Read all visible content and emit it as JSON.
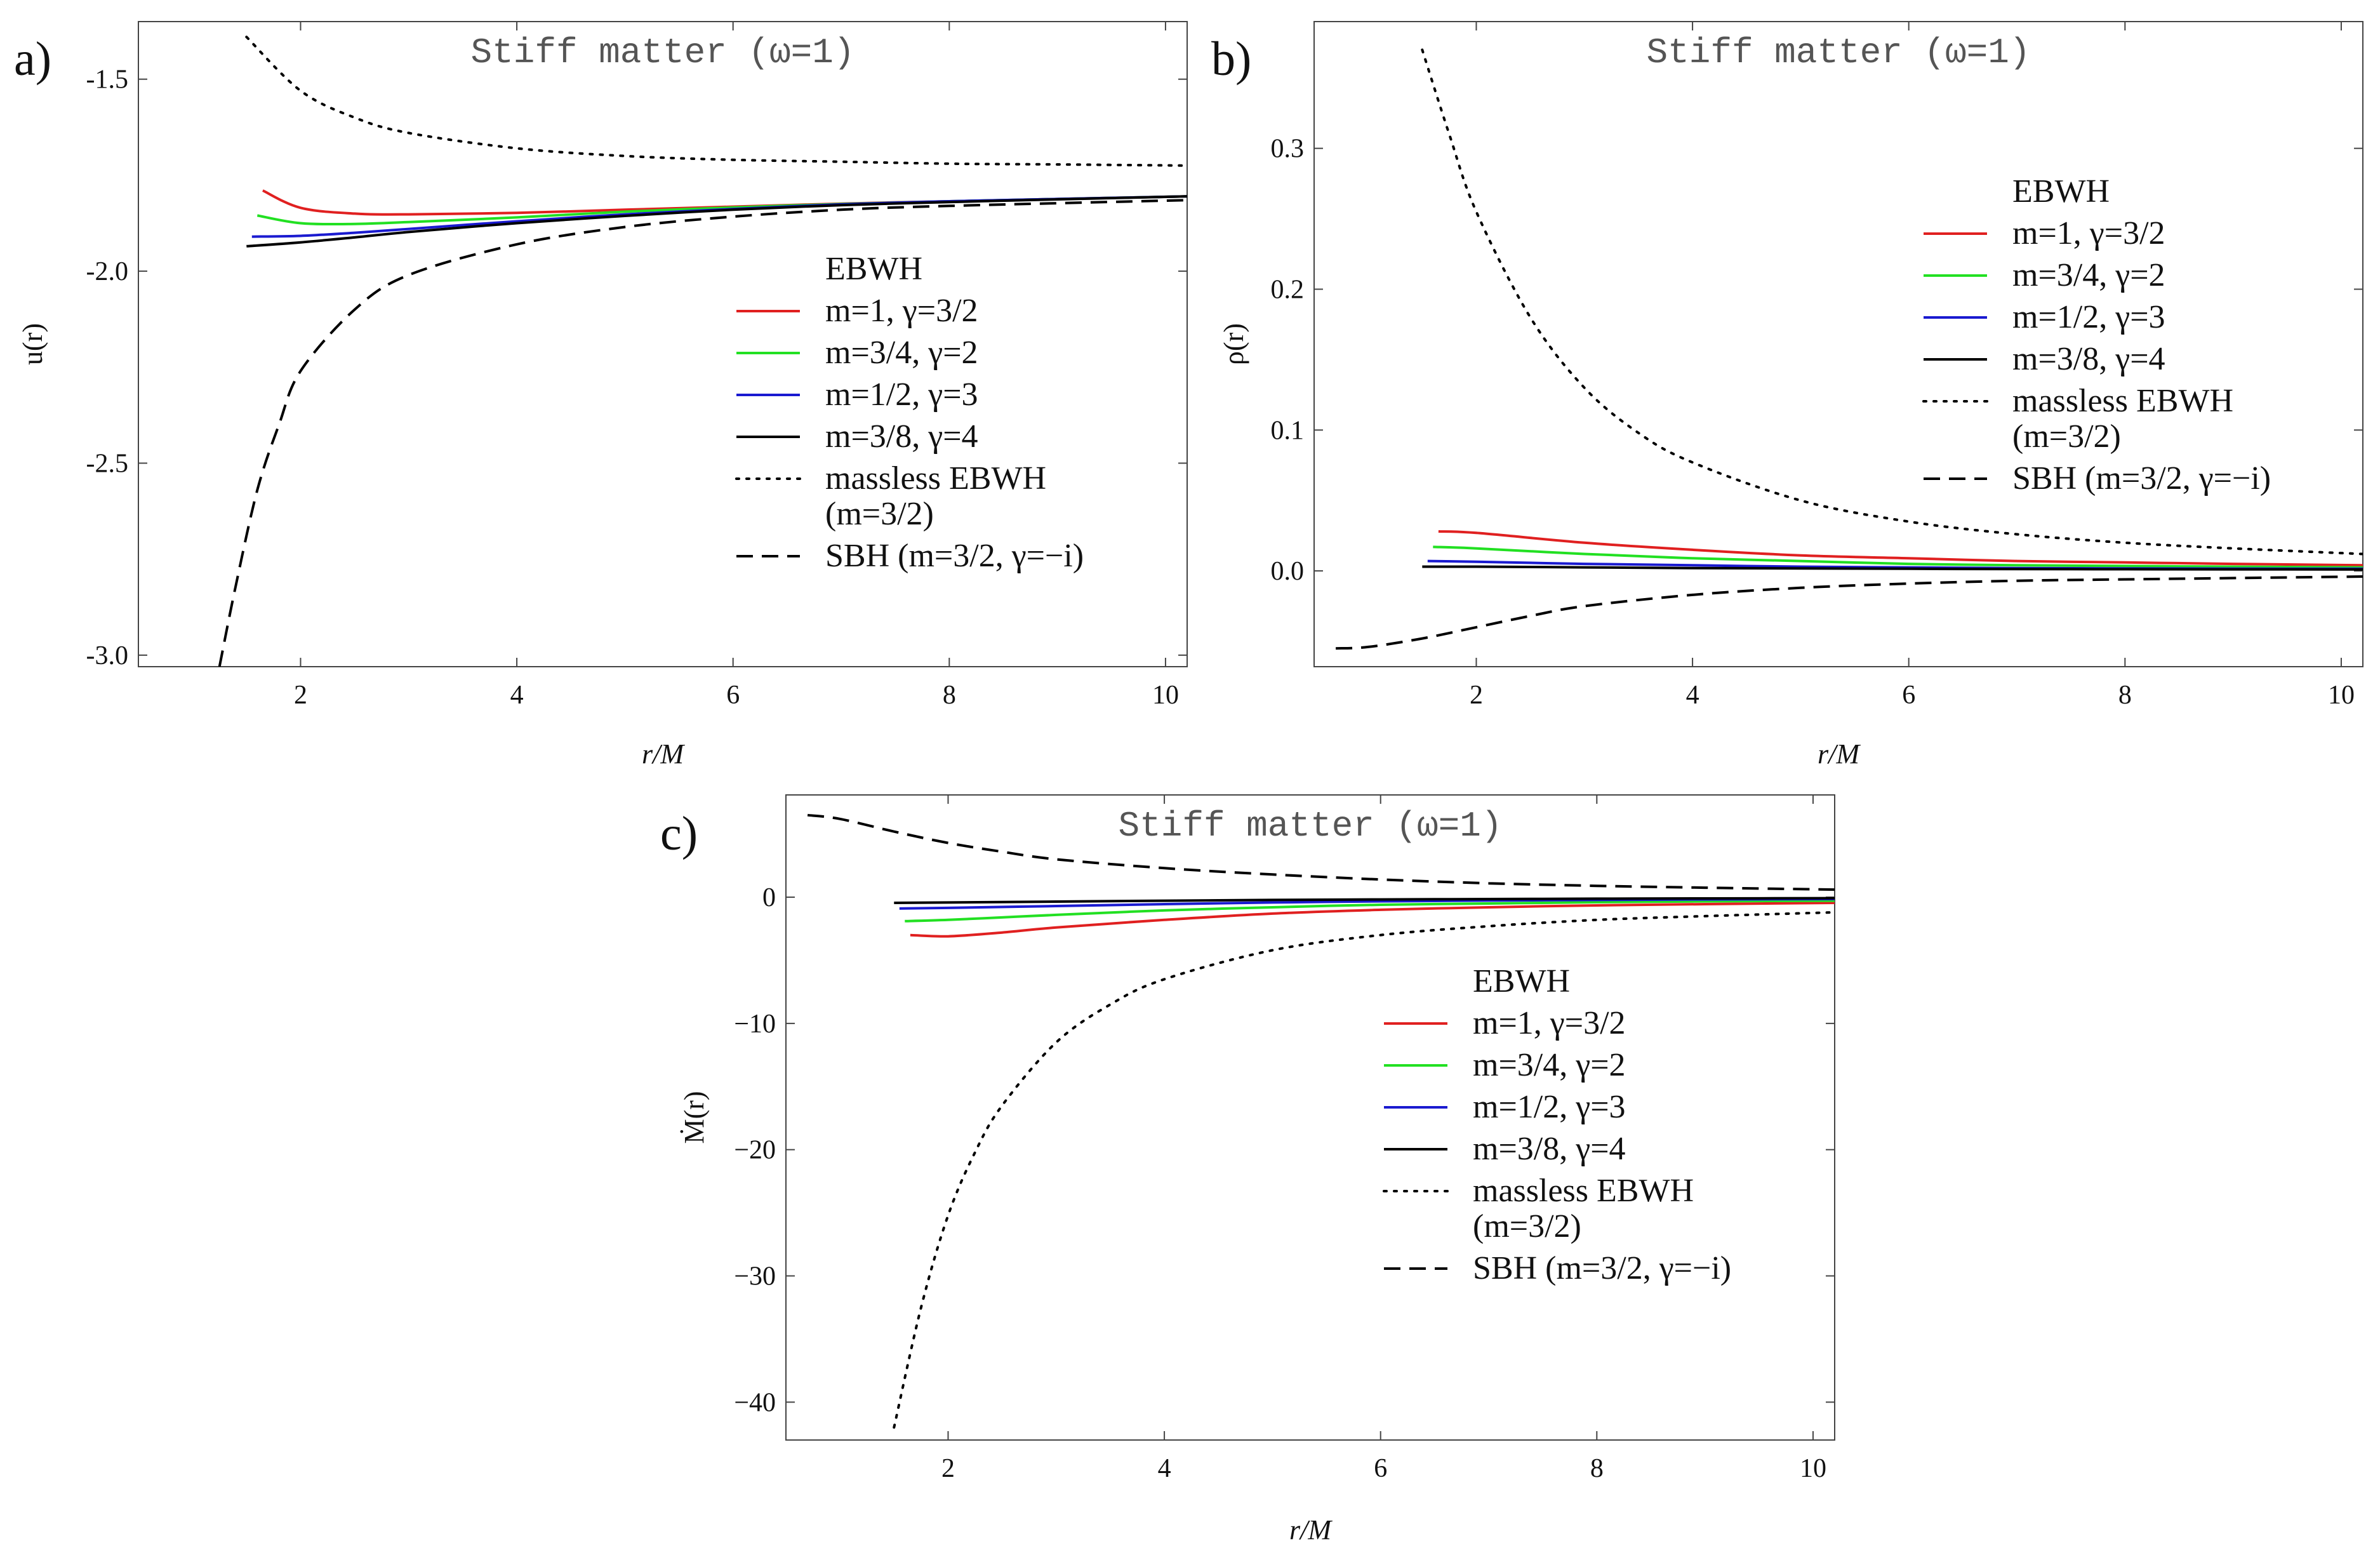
{
  "chart_data": [
    {
      "type": "line",
      "panel_label": "a)",
      "title": "Stiff matter (ω=1)",
      "xlabel": "r/M",
      "ylabel": "u(r)",
      "xlim": [
        0.5,
        10.2
      ],
      "ylim": [
        -3.03,
        -1.35
      ],
      "xticks": [
        "2",
        "4",
        "6",
        "8",
        "10"
      ],
      "xtick_values": [
        2,
        4,
        6,
        8,
        10
      ],
      "yticks": [
        "-1.5",
        "-2.0",
        "-2.5",
        "-3.0"
      ],
      "ytick_values": [
        -1.5,
        -2.0,
        -2.5,
        -3.0
      ],
      "legend": {
        "position": "center-right",
        "heading": "EBWH",
        "entries": [
          {
            "label": "m=1, γ=3/2",
            "color": "#e02020",
            "dash": "solid"
          },
          {
            "label": "m=3/4, γ=2",
            "color": "#22e022",
            "dash": "solid"
          },
          {
            "label": "m=1/2, γ=3",
            "color": "#1a1ad0",
            "dash": "solid"
          },
          {
            "label": "m=3/8, γ=4",
            "color": "#000000",
            "dash": "solid"
          },
          {
            "label": "massless EBWH",
            "label2": "(m=3/2)",
            "color": "#000000",
            "dash": "dotted"
          },
          {
            "label": "SBH (m=3/2, γ=−i)",
            "color": "#000000",
            "dash": "dashed"
          }
        ]
      },
      "series": [
        {
          "name": "m=1, γ=3/2",
          "color": "#e02020",
          "dash": "solid",
          "x": [
            1.65,
            2,
            2.5,
            3,
            4,
            5,
            6,
            7,
            8,
            9,
            10.2
          ],
          "y": [
            -1.79,
            -1.835,
            -1.85,
            -1.852,
            -1.848,
            -1.84,
            -1.832,
            -1.824,
            -1.818,
            -1.812,
            -1.805
          ]
        },
        {
          "name": "m=3/4, γ=2",
          "color": "#22e022",
          "dash": "solid",
          "x": [
            1.6,
            2,
            2.5,
            3,
            4,
            5,
            6,
            7,
            8,
            9,
            10.2
          ],
          "y": [
            -1.855,
            -1.875,
            -1.877,
            -1.872,
            -1.86,
            -1.845,
            -1.834,
            -1.825,
            -1.818,
            -1.812,
            -1.805
          ]
        },
        {
          "name": "m=1/2, γ=3",
          "color": "#1a1ad0",
          "dash": "solid",
          "x": [
            1.55,
            2,
            2.5,
            3,
            4,
            5,
            6,
            7,
            8,
            9,
            10.2
          ],
          "y": [
            -1.91,
            -1.908,
            -1.9,
            -1.89,
            -1.87,
            -1.852,
            -1.838,
            -1.826,
            -1.818,
            -1.812,
            -1.805
          ]
        },
        {
          "name": "m=3/8, γ=4",
          "color": "#000000",
          "dash": "solid",
          "x": [
            1.5,
            2,
            2.5,
            3,
            4,
            5,
            6,
            7,
            8,
            9,
            10.2
          ],
          "y": [
            -1.935,
            -1.925,
            -1.912,
            -1.898,
            -1.875,
            -1.856,
            -1.84,
            -1.828,
            -1.82,
            -1.813,
            -1.805
          ]
        },
        {
          "name": "massless EBWH (m=3/2)",
          "color": "#000000",
          "dash": "dotted",
          "x": [
            1.5,
            2,
            2.5,
            3,
            4,
            5,
            6,
            7,
            8,
            9,
            10.2
          ],
          "y": [
            -1.39,
            -1.53,
            -1.6,
            -1.64,
            -1.68,
            -1.7,
            -1.71,
            -1.715,
            -1.72,
            -1.722,
            -1.725
          ]
        },
        {
          "name": "SBH (m=3/2, γ=−i)",
          "color": "#000000",
          "dash": "dashed",
          "x": [
            1.25,
            1.4,
            1.6,
            1.8,
            2,
            2.5,
            3,
            4,
            5,
            6,
            7,
            8,
            10.2
          ],
          "y": [
            -3.03,
            -2.82,
            -2.57,
            -2.4,
            -2.26,
            -2.1,
            -2.01,
            -1.93,
            -1.885,
            -1.858,
            -1.84,
            -1.83,
            -1.815
          ]
        }
      ]
    },
    {
      "type": "line",
      "panel_label": "b)",
      "title": "Stiff matter (ω=1)",
      "xlabel": "r/M",
      "ylabel": "ρ(r)",
      "xlim": [
        0.5,
        10.2
      ],
      "ylim": [
        -0.068,
        0.39
      ],
      "xticks": [
        "2",
        "4",
        "6",
        "8",
        "10"
      ],
      "xtick_values": [
        2,
        4,
        6,
        8,
        10
      ],
      "yticks": [
        "0.3",
        "0.2",
        "0.1",
        "0.0"
      ],
      "ytick_values": [
        0.3,
        0.2,
        0.1,
        0.0
      ],
      "legend": {
        "position": "right",
        "heading": "EBWH",
        "entries": [
          {
            "label": "m=1, γ=3/2",
            "color": "#e02020",
            "dash": "solid"
          },
          {
            "label": "m=3/4, γ=2",
            "color": "#22e022",
            "dash": "solid"
          },
          {
            "label": "m=1/2, γ=3",
            "color": "#1a1ad0",
            "dash": "solid"
          },
          {
            "label": "m=3/8, γ=4",
            "color": "#000000",
            "dash": "solid"
          },
          {
            "label": "massless EBWH",
            "label2": "(m=3/2)",
            "color": "#000000",
            "dash": "dotted"
          },
          {
            "label": "SBH (m=3/2, γ=−i)",
            "color": "#000000",
            "dash": "dashed"
          }
        ]
      },
      "series": [
        {
          "name": "m=1, γ=3/2",
          "color": "#e02020",
          "dash": "solid",
          "x": [
            1.65,
            2,
            3,
            4,
            5,
            6,
            7,
            8,
            9,
            10.2
          ],
          "y": [
            0.028,
            0.027,
            0.02,
            0.015,
            0.011,
            0.009,
            0.007,
            0.006,
            0.005,
            0.004
          ]
        },
        {
          "name": "m=3/4, γ=2",
          "color": "#22e022",
          "dash": "solid",
          "x": [
            1.6,
            2,
            3,
            4,
            5,
            6,
            7,
            8,
            9,
            10.2
          ],
          "y": [
            0.017,
            0.016,
            0.012,
            0.009,
            0.007,
            0.005,
            0.004,
            0.0035,
            0.003,
            0.0025
          ]
        },
        {
          "name": "m=1/2, γ=3",
          "color": "#1a1ad0",
          "dash": "solid",
          "x": [
            1.55,
            2,
            3,
            4,
            5,
            6,
            7,
            8,
            9,
            10.2
          ],
          "y": [
            0.007,
            0.0065,
            0.005,
            0.004,
            0.003,
            0.0025,
            0.002,
            0.0018,
            0.0016,
            0.0015
          ]
        },
        {
          "name": "m=3/8, γ=4",
          "color": "#000000",
          "dash": "solid",
          "x": [
            1.5,
            2,
            3,
            4,
            5,
            6,
            7,
            8,
            9,
            10.2
          ],
          "y": [
            0.003,
            0.003,
            0.0025,
            0.002,
            0.0018,
            0.0015,
            0.0013,
            0.0012,
            0.0011,
            0.001
          ]
        },
        {
          "name": "massless EBWH (m=3/2)",
          "color": "#000000",
          "dash": "dotted",
          "x": [
            1.5,
            1.75,
            2,
            2.5,
            3,
            3.5,
            4,
            5,
            6,
            7,
            8,
            9,
            10.2
          ],
          "y": [
            0.37,
            0.31,
            0.255,
            0.18,
            0.13,
            0.098,
            0.077,
            0.05,
            0.035,
            0.026,
            0.02,
            0.016,
            0.012
          ]
        },
        {
          "name": "SBH (m=3/2, γ=−i)",
          "color": "#000000",
          "dash": "dashed",
          "x": [
            0.7,
            1,
            1.5,
            2,
            2.5,
            3,
            4,
            5,
            6,
            7,
            8,
            10.2
          ],
          "y": [
            -0.055,
            -0.054,
            -0.048,
            -0.04,
            -0.032,
            -0.025,
            -0.017,
            -0.012,
            -0.009,
            -0.007,
            -0.006,
            -0.004
          ]
        }
      ]
    },
    {
      "type": "line",
      "panel_label": "c)",
      "title": "Stiff matter (ω=1)",
      "xlabel": "r/M",
      "ylabel": "Ṁ(r)",
      "xlim": [
        0.5,
        10.2
      ],
      "ylim": [
        -43,
        8.1
      ],
      "xticks": [
        "2",
        "4",
        "6",
        "8",
        "10"
      ],
      "xtick_values": [
        2,
        4,
        6,
        8,
        10
      ],
      "yticks": [
        "0",
        "−10",
        "−20",
        "−30",
        "−40"
      ],
      "ytick_values": [
        0,
        -10,
        -20,
        -30,
        -40
      ],
      "legend": {
        "position": "center-right",
        "heading": "EBWH",
        "entries": [
          {
            "label": "m=1, γ=3/2",
            "color": "#e02020",
            "dash": "solid"
          },
          {
            "label": "m=3/4, γ=2",
            "color": "#22e022",
            "dash": "solid"
          },
          {
            "label": "m=1/2, γ=3",
            "color": "#1a1ad0",
            "dash": "solid"
          },
          {
            "label": "m=3/8, γ=4",
            "color": "#000000",
            "dash": "solid"
          },
          {
            "label": "massless EBWH",
            "label2": "(m=3/2)",
            "color": "#000000",
            "dash": "dotted"
          },
          {
            "label": "SBH (m=3/2, γ=−i)",
            "color": "#000000",
            "dash": "dashed"
          }
        ]
      },
      "series": [
        {
          "name": "m=1, γ=3/2",
          "color": "#e02020",
          "dash": "solid",
          "x": [
            1.65,
            2,
            2.5,
            3,
            4,
            5,
            6,
            7,
            8,
            9,
            10.2
          ],
          "y": [
            -3.0,
            -3.1,
            -2.8,
            -2.4,
            -1.8,
            -1.3,
            -1.0,
            -0.8,
            -0.65,
            -0.55,
            -0.45
          ]
        },
        {
          "name": "m=3/4, γ=2",
          "color": "#22e022",
          "dash": "solid",
          "x": [
            1.6,
            2,
            2.5,
            3,
            4,
            5,
            6,
            7,
            8,
            9,
            10.2
          ],
          "y": [
            -1.9,
            -1.8,
            -1.6,
            -1.4,
            -1.05,
            -0.8,
            -0.6,
            -0.5,
            -0.4,
            -0.33,
            -0.28
          ]
        },
        {
          "name": "m=1/2, γ=3",
          "color": "#1a1ad0",
          "dash": "solid",
          "x": [
            1.55,
            2,
            3,
            4,
            5,
            6,
            7,
            8,
            9,
            10.2
          ],
          "y": [
            -0.9,
            -0.85,
            -0.7,
            -0.55,
            -0.42,
            -0.33,
            -0.27,
            -0.22,
            -0.18,
            -0.15
          ]
        },
        {
          "name": "m=3/8, γ=4",
          "color": "#000000",
          "dash": "solid",
          "x": [
            1.5,
            2,
            3,
            4,
            5,
            6,
            7,
            8,
            9,
            10.2
          ],
          "y": [
            -0.45,
            -0.42,
            -0.35,
            -0.28,
            -0.22,
            -0.18,
            -0.15,
            -0.12,
            -0.1,
            -0.08
          ]
        },
        {
          "name": "massless EBWH (m=3/2)",
          "color": "#000000",
          "dash": "dotted",
          "x": [
            1.5,
            1.75,
            2,
            2.25,
            2.5,
            3,
            3.5,
            4,
            5,
            6,
            7,
            8,
            9,
            10.2
          ],
          "y": [
            -42,
            -32.5,
            -25.2,
            -20.2,
            -16.5,
            -11.5,
            -8.5,
            -6.5,
            -4.2,
            -3.0,
            -2.3,
            -1.8,
            -1.5,
            -1.2
          ]
        },
        {
          "name": "SBH (m=3/2, γ=−i)",
          "color": "#000000",
          "dash": "dashed",
          "x": [
            0.7,
            1,
            1.5,
            2,
            2.5,
            3,
            4,
            5,
            6,
            7,
            8,
            9,
            10.2
          ],
          "y": [
            6.5,
            6.2,
            5.2,
            4.3,
            3.6,
            3.0,
            2.3,
            1.8,
            1.4,
            1.1,
            0.9,
            0.75,
            0.6
          ]
        }
      ]
    }
  ]
}
